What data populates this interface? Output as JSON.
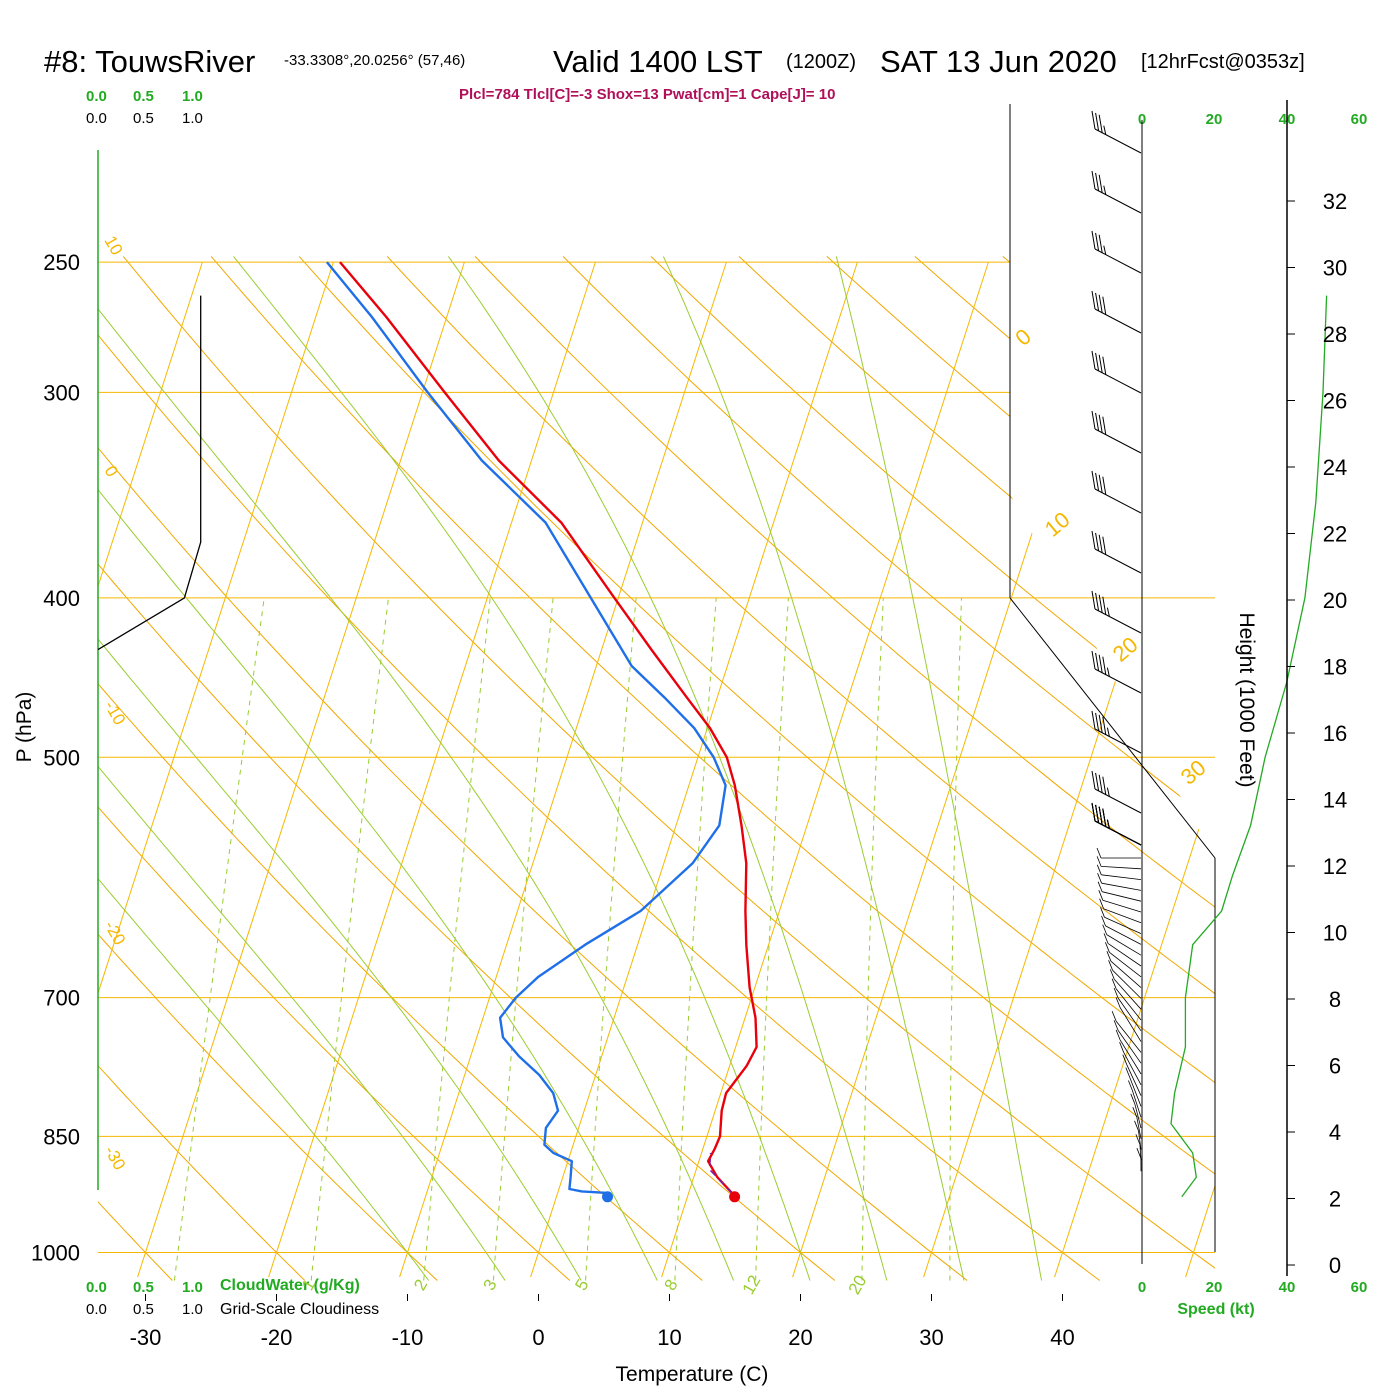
{
  "header": {
    "station": "#8: TouwsRiver",
    "coords": "-33.3308°,20.0256° (57,46)",
    "valid": "Valid 1400 LST",
    "zulu": "(1200Z)",
    "date": "SAT 13 Jun 2020",
    "fcst": "[12hrFcst@0353z]",
    "indices": "Plcl=784 Tlcl[C]=-3 Shox=13 Pwat[cm]=1 Cape[J]= 10"
  },
  "colors": {
    "temperature": "#e8000b",
    "dewpoint": "#1f6fe8",
    "isotherm": "#f5b800",
    "dry_adiabat": "#f0a800",
    "moist_adiabat": "#9acd32",
    "mixing_ratio": "#9acd32",
    "green_label": "#22aa22",
    "index_text": "#b0105a",
    "parcel": "#7a1fa0"
  },
  "cloud_axes": {
    "top_green": [
      "0.0",
      "0.5",
      "1.0"
    ],
    "top_black": [
      "0.0",
      "0.5",
      "1.0"
    ],
    "bottom_green": [
      "0.0",
      "0.5",
      "1.0"
    ],
    "bottom_black": [
      "0.0",
      "0.5",
      "1.0"
    ],
    "cloudwater_label": "CloudWater (g/Kg)",
    "cloudiness_label": "Grid-Scale Cloudiness"
  },
  "speed_axis": {
    "ticks": [
      "0",
      "20",
      "40",
      "60"
    ],
    "label": "Speed (kt)"
  },
  "mixing_ratio_labels": [
    "1",
    "2",
    "3",
    "5",
    "8",
    "12",
    "20"
  ],
  "isotherm_labels": [
    "10",
    "0",
    "-10",
    "-20",
    "-30"
  ],
  "dry_adiabat_labels": [
    "0",
    "10",
    "20",
    "30"
  ],
  "chart_data": {
    "type": "line",
    "title": "#8: TouwsRiver Valid 1400 LST (1200Z) SAT 13 Jun 2020 [12hrFcst@0353z]",
    "xlabel": "Temperature (C)",
    "ylabel": "P (hPa)",
    "y2label": "Height (1000 Feet)",
    "x_ticks": [
      "-30",
      "-20",
      "-10",
      "0",
      "10",
      "20",
      "30",
      "40"
    ],
    "y_ticks": [
      "250",
      "300",
      "400",
      "500",
      "700",
      "850",
      "1000"
    ],
    "height_ticks": [
      "0",
      "2",
      "4",
      "6",
      "8",
      "10",
      "12",
      "14",
      "16",
      "18",
      "20",
      "22",
      "24",
      "26",
      "28",
      "30",
      "32"
    ],
    "series": [
      {
        "name": "Temperature",
        "points": [
          [
            13.3,
            920
          ],
          [
            11.8,
            900
          ],
          [
            10.7,
            880
          ],
          [
            10.9,
            865
          ],
          [
            11.0,
            850
          ],
          [
            10.5,
            820
          ],
          [
            10.4,
            800
          ],
          [
            11.3,
            770
          ],
          [
            11.6,
            750
          ],
          [
            10.8,
            720
          ],
          [
            9.6,
            690
          ],
          [
            8.3,
            650
          ],
          [
            7.4,
            620
          ],
          [
            6.3,
            580
          ],
          [
            5.0,
            550
          ],
          [
            3.5,
            520
          ],
          [
            2.2,
            500
          ],
          [
            0.2,
            480
          ],
          [
            -2.3,
            460
          ],
          [
            -6.2,
            430
          ],
          [
            -10.3,
            400
          ],
          [
            -16.2,
            360
          ],
          [
            -22.5,
            330
          ],
          [
            -28.3,
            300
          ],
          [
            -34.6,
            270
          ],
          [
            -39.5,
            250
          ]
        ]
      },
      {
        "name": "Dewpoint",
        "points": [
          [
            3.8,
            920
          ],
          [
            1.8,
            918
          ],
          [
            0.8,
            915
          ],
          [
            0.6,
            900
          ],
          [
            0.3,
            880
          ],
          [
            -1.3,
            870
          ],
          [
            -2.2,
            860
          ],
          [
            -2.5,
            840
          ],
          [
            -2.0,
            820
          ],
          [
            -2.8,
            800
          ],
          [
            -4.3,
            780
          ],
          [
            -6.3,
            760
          ],
          [
            -8.0,
            740
          ],
          [
            -8.7,
            720
          ],
          [
            -8.0,
            700
          ],
          [
            -6.8,
            680
          ],
          [
            -4.0,
            650
          ],
          [
            -0.6,
            620
          ],
          [
            2.2,
            580
          ],
          [
            3.3,
            550
          ],
          [
            2.8,
            520
          ],
          [
            1.2,
            500
          ],
          [
            -1.0,
            480
          ],
          [
            -4.0,
            460
          ],
          [
            -7.3,
            440
          ],
          [
            -12.1,
            400
          ],
          [
            -17.4,
            360
          ],
          [
            -23.8,
            330
          ],
          [
            -29.6,
            300
          ],
          [
            -35.7,
            270
          ],
          [
            -40.5,
            250
          ]
        ]
      }
    ],
    "parcel_path": [
      [
        13.3,
        920
      ],
      [
        11.0,
        890
      ],
      [
        10.7,
        870
      ]
    ],
    "surface_temperature_point": [
      13.6,
      925
    ],
    "surface_dewpoint_point": [
      3.9,
      925
    ],
    "cloudiness_profile": [
      [
        0.0,
        430
      ],
      [
        0.9,
        400
      ],
      [
        1.07,
        370
      ],
      [
        1.07,
        262
      ]
    ],
    "wind_speed_profile_kt": [
      [
        11,
        925
      ],
      [
        15,
        900
      ],
      [
        14,
        870
      ],
      [
        8,
        835
      ],
      [
        9,
        800
      ],
      [
        12,
        750
      ],
      [
        12,
        700
      ],
      [
        14,
        650
      ],
      [
        22,
        620
      ],
      [
        25,
        590
      ],
      [
        30,
        550
      ],
      [
        34,
        500
      ],
      [
        40,
        450
      ],
      [
        45,
        400
      ],
      [
        48,
        350
      ],
      [
        50,
        300
      ],
      [
        51,
        262
      ]
    ],
    "wind_barb_speeds_kt": [
      35,
      35,
      35,
      40,
      40,
      40,
      40,
      40,
      45,
      45,
      45,
      45,
      45,
      45,
      45,
      45
    ],
    "ylim": [
      1035,
      250
    ],
    "xlim": [
      -35,
      36
    ],
    "skew": true,
    "log_pressure": true,
    "grid": true
  }
}
